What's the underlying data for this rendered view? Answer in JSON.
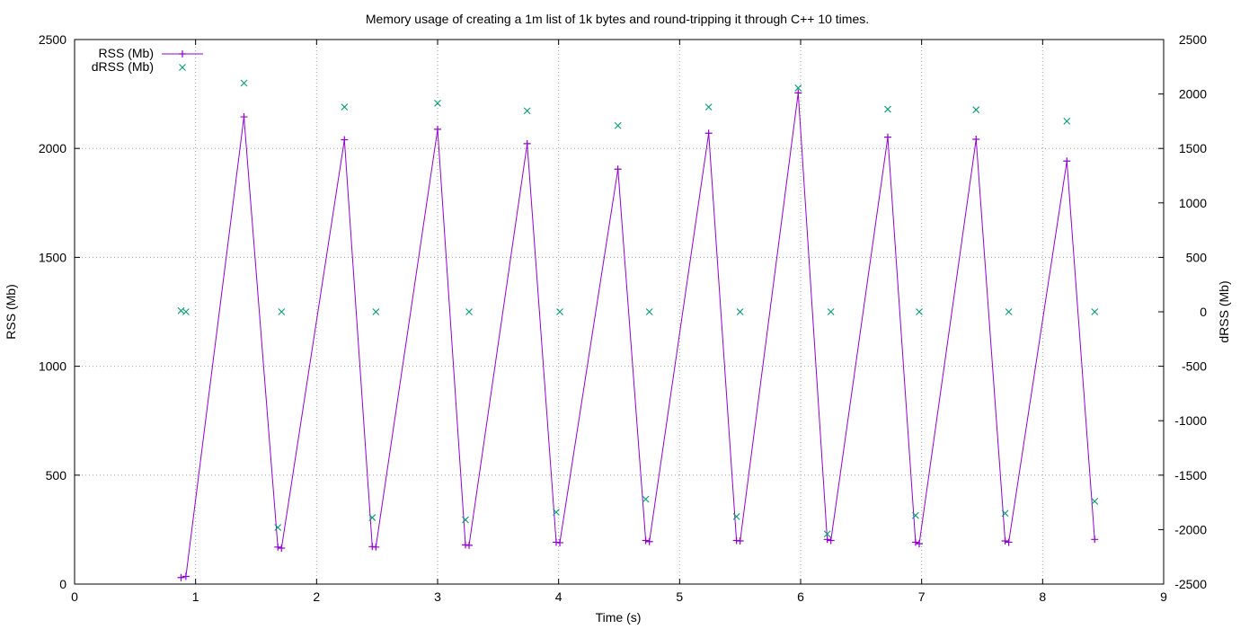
{
  "chart_data": {
    "type": "line",
    "title": "Memory usage of creating a 1m list of 1k bytes and round-tripping it through C++ 10 times.",
    "xlabel": "Time (s)",
    "ylabel": "RSS (Mb)",
    "y2label": "dRSS (Mb)",
    "xlim": [
      0,
      9
    ],
    "ylim": [
      0,
      2500
    ],
    "y2lim": [
      -2500,
      2500
    ],
    "xticks": [
      "0",
      "1",
      "2",
      "3",
      "4",
      "5",
      "6",
      "7",
      "8",
      "9"
    ],
    "yticks": [
      "0",
      "500",
      "1000",
      "1500",
      "2000",
      "2500"
    ],
    "y2ticks": [
      "-2500",
      "-2000",
      "-1500",
      "-1000",
      "-500",
      "0",
      "500",
      "1000",
      "1500",
      "2000",
      "2500"
    ],
    "grid": true,
    "legend_position": "top-left",
    "series": [
      {
        "name": "RSS (Mb)",
        "axis": "left",
        "style": "linespoints",
        "marker": "plus",
        "color": "#9400d3",
        "points": [
          [
            0.88,
            30
          ],
          [
            0.92,
            35
          ],
          [
            1.4,
            2145
          ],
          [
            1.68,
            170
          ],
          [
            1.71,
            165
          ],
          [
            2.23,
            2040
          ],
          [
            2.46,
            172
          ],
          [
            2.49,
            170
          ],
          [
            3.0,
            2088
          ],
          [
            3.23,
            180
          ],
          [
            3.26,
            178
          ],
          [
            3.74,
            2022
          ],
          [
            3.98,
            192
          ],
          [
            4.01,
            190
          ],
          [
            4.49,
            1905
          ],
          [
            4.72,
            200
          ],
          [
            4.75,
            195
          ],
          [
            5.24,
            2070
          ],
          [
            5.47,
            200
          ],
          [
            5.5,
            198
          ],
          [
            5.98,
            2255
          ],
          [
            6.22,
            205
          ],
          [
            6.25,
            200
          ],
          [
            6.72,
            2052
          ],
          [
            6.95,
            192
          ],
          [
            6.98,
            185
          ],
          [
            7.45,
            2042
          ],
          [
            7.69,
            198
          ],
          [
            7.72,
            192
          ],
          [
            8.2,
            1942
          ],
          [
            8.43,
            205
          ]
        ]
      },
      {
        "name": "dRSS (Mb)",
        "axis": "right",
        "style": "points",
        "marker": "cross",
        "color": "#009e73",
        "points": [
          [
            0.88,
            10
          ],
          [
            0.92,
            0
          ],
          [
            1.4,
            2100
          ],
          [
            1.68,
            -1980
          ],
          [
            1.71,
            0
          ],
          [
            2.23,
            1880
          ],
          [
            2.46,
            -1890
          ],
          [
            2.49,
            0
          ],
          [
            3.0,
            1915
          ],
          [
            3.23,
            -1910
          ],
          [
            3.26,
            0
          ],
          [
            3.74,
            1845
          ],
          [
            3.98,
            -1840
          ],
          [
            4.01,
            0
          ],
          [
            4.49,
            1710
          ],
          [
            4.72,
            -1720
          ],
          [
            4.75,
            0
          ],
          [
            5.24,
            1880
          ],
          [
            5.47,
            -1880
          ],
          [
            5.5,
            0
          ],
          [
            5.98,
            2055
          ],
          [
            6.22,
            -2040
          ],
          [
            6.25,
            0
          ],
          [
            6.72,
            1860
          ],
          [
            6.95,
            -1870
          ],
          [
            6.98,
            0
          ],
          [
            7.45,
            1855
          ],
          [
            7.69,
            -1850
          ],
          [
            7.72,
            0
          ],
          [
            8.2,
            1750
          ],
          [
            8.43,
            -1740
          ],
          [
            8.43,
            0
          ]
        ]
      }
    ]
  }
}
